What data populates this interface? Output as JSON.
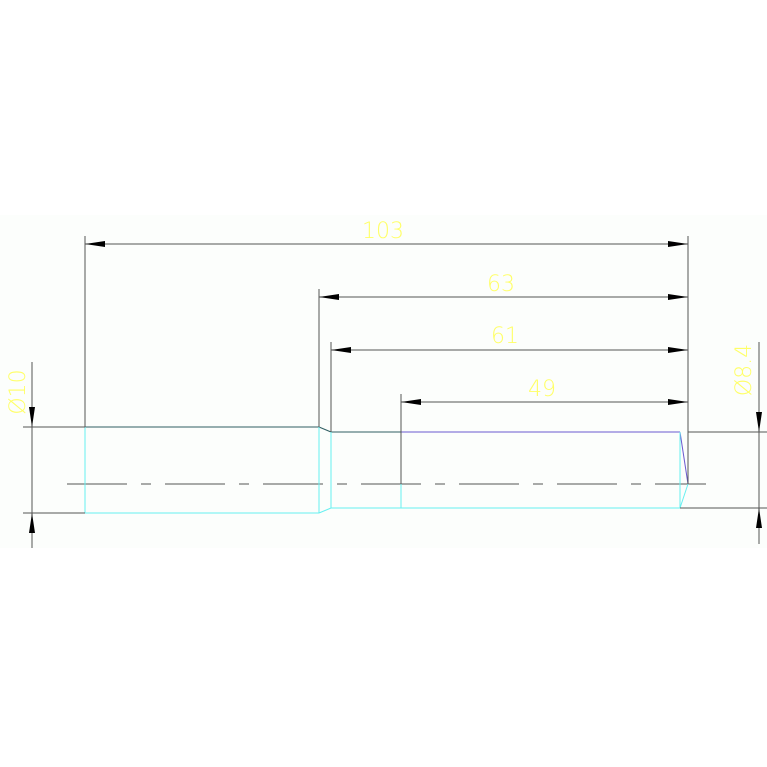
{
  "colors": {
    "background": "#ffffff",
    "drawing_area": "#fcfefc",
    "outline": "#2f5e62",
    "hidden_edge": "#66f0f0",
    "chamfer_edge": "#6a5ad0",
    "dimension": "#555555",
    "text": "#ffff66"
  },
  "dimensions": {
    "length_103": "103",
    "length_63": "63",
    "length_61": "61",
    "length_49": "49",
    "dia_10": "Ø10",
    "dia_8_4": "Ø8.4"
  }
}
